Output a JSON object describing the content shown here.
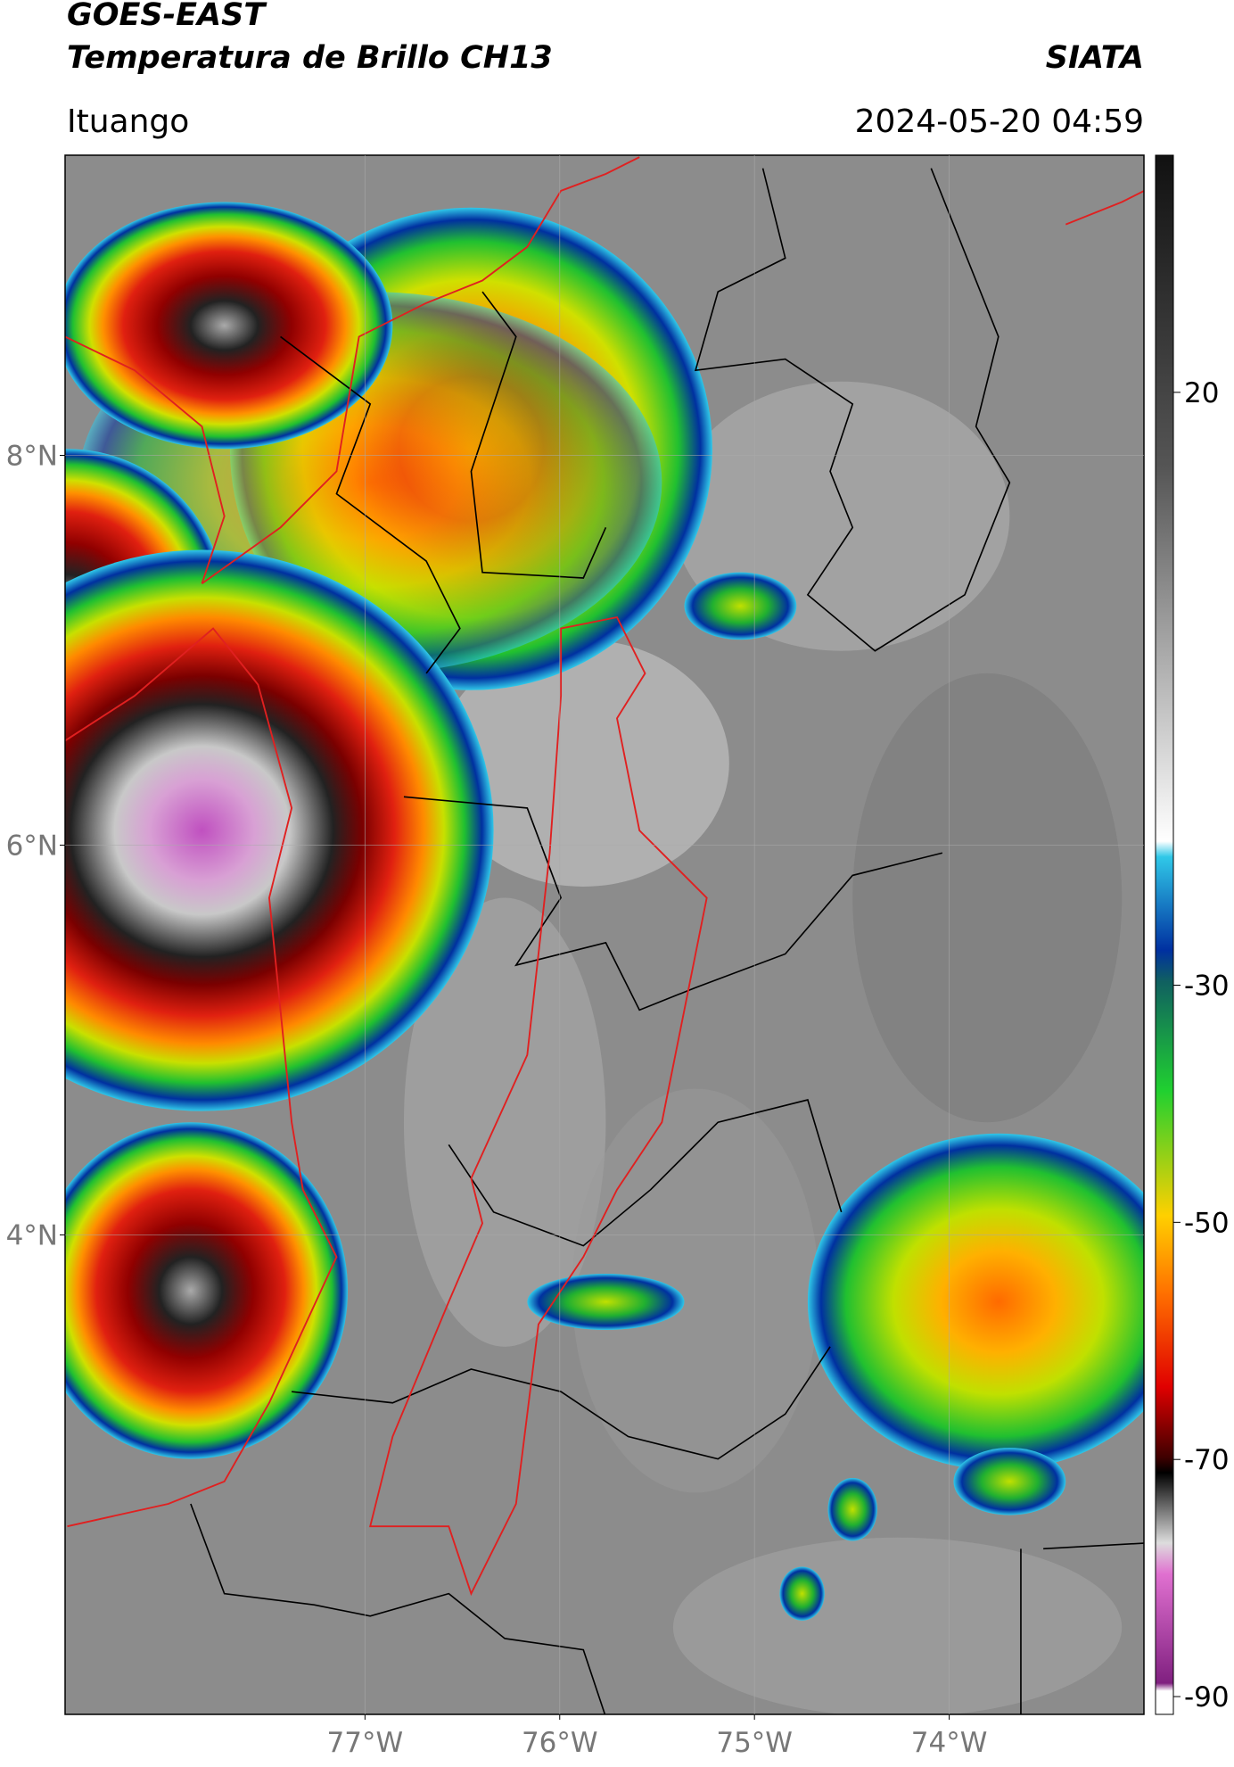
{
  "header": {
    "title": "GOES-EAST",
    "subtitle": "Temperatura de Brillo CH13",
    "brand": "SIATA",
    "location": "Ituango",
    "datetime": "2024-05-20 04:59"
  },
  "map": {
    "xlim": [
      -78.54,
      -73.0
    ],
    "ylim": [
      1.54,
      9.54
    ],
    "xticks": [
      {
        "value": -77,
        "label": "77°W"
      },
      {
        "value": -76,
        "label": "76°W"
      },
      {
        "value": -75,
        "label": "75°W"
      },
      {
        "value": -74,
        "label": "74°W"
      }
    ],
    "yticks": [
      {
        "value": 8,
        "label": "8°N"
      },
      {
        "value": 6,
        "label": "6°N"
      },
      {
        "value": 4,
        "label": "4°N"
      }
    ],
    "grid": true
  },
  "colorbar": {
    "clim": [
      -91.5,
      40
    ],
    "ticks": [
      20,
      -30,
      -50,
      -70,
      -90
    ]
  }
}
